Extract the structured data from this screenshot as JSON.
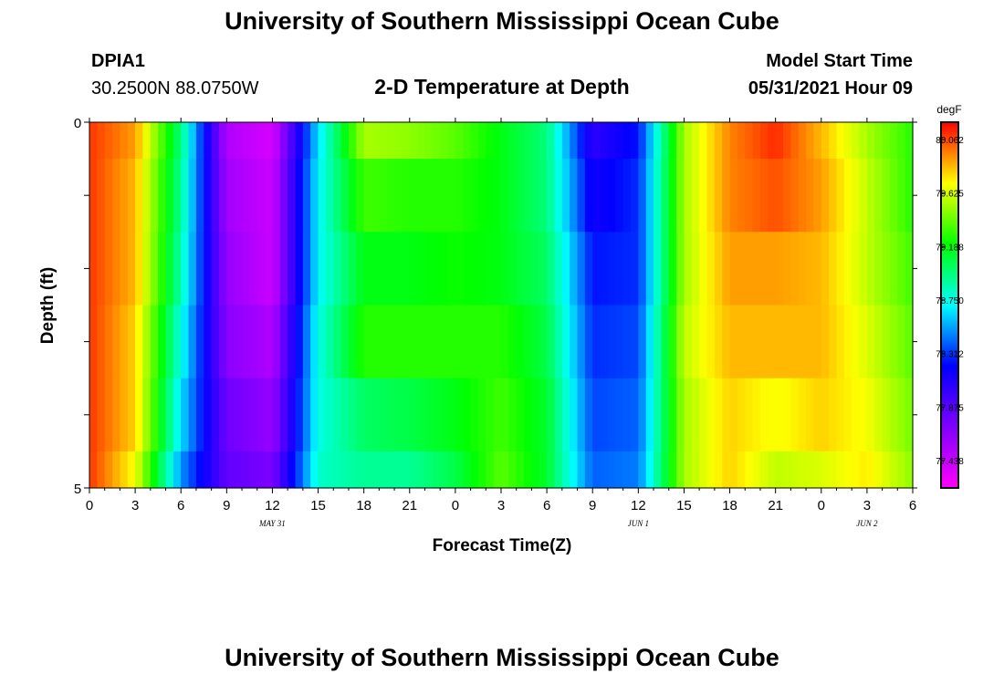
{
  "header": {
    "title": "University of Southern Mississippi Ocean Cube",
    "station_id": "DPIA1",
    "station_coords": "30.2500N  88.0750W",
    "chart_title": "2-D Temperature at Depth",
    "start_label": "Model Start Time",
    "start_value": "05/31/2021 Hour 09"
  },
  "footer": {
    "title": "University of Southern Mississippi Ocean Cube"
  },
  "chart_data": {
    "type": "heatmap",
    "title": "2-D Temperature at Depth",
    "xlabel": "Forecast Time(Z)",
    "ylabel": "Depth (ft)",
    "x_tick_labels": [
      "0",
      "3",
      "6",
      "9",
      "12",
      "15",
      "18",
      "21",
      "0",
      "3",
      "6",
      "9",
      "12",
      "15",
      "18",
      "21",
      "0",
      "3",
      "6"
    ],
    "date_labels": [
      {
        "text": "MAY 31",
        "at_tick": 4
      },
      {
        "text": "JUN 1",
        "at_tick": 12
      },
      {
        "text": "JUN 2",
        "at_tick": 17
      }
    ],
    "y_tick_labels": [
      "0",
      "5"
    ],
    "ylim": [
      0,
      5
    ],
    "colorbar": {
      "unit": "degF",
      "labels": [
        "80.062",
        "79.625",
        "79.188",
        "78.750",
        "78.312",
        "77.875",
        "77.438"
      ],
      "colors": [
        "#ff00ff",
        "#8000ff",
        "#0000ff",
        "#00ffff",
        "#00ff00",
        "#ffff00",
        "#ff0000"
      ]
    },
    "times_hours": [
      0,
      3,
      6,
      9,
      12,
      15,
      18,
      21,
      24,
      27,
      30,
      33,
      36,
      39,
      42,
      45,
      48,
      51,
      54
    ],
    "depth_rows": [
      "0-0.5",
      "0.5-1.5",
      "1.5-2.5",
      "2.5-3.5",
      "3.5-4.5",
      "4.5-5"
    ],
    "values_degF": [
      [
        80.1,
        79.9,
        79.0,
        77.6,
        77.45,
        78.7,
        79.55,
        79.5,
        79.4,
        79.2,
        79.0,
        78.1,
        78.3,
        79.55,
        79.95,
        80.12,
        79.85,
        79.55,
        79.3
      ],
      [
        80.1,
        79.85,
        78.95,
        77.65,
        77.5,
        78.75,
        79.35,
        79.3,
        79.3,
        79.2,
        79.0,
        78.2,
        78.35,
        79.55,
        79.95,
        80.05,
        79.9,
        79.6,
        79.3
      ],
      [
        80.1,
        79.85,
        78.9,
        77.7,
        77.5,
        78.75,
        79.2,
        79.2,
        79.25,
        79.2,
        79.05,
        78.3,
        78.35,
        79.55,
        79.9,
        79.9,
        79.85,
        79.6,
        79.35
      ],
      [
        80.1,
        79.8,
        78.8,
        77.75,
        77.6,
        78.8,
        79.3,
        79.3,
        79.3,
        79.3,
        79.1,
        78.35,
        78.4,
        79.6,
        79.85,
        79.85,
        79.85,
        79.65,
        79.4
      ],
      [
        80.1,
        79.8,
        78.7,
        77.85,
        77.7,
        78.8,
        79.05,
        79.1,
        79.2,
        79.35,
        79.15,
        78.4,
        78.45,
        79.55,
        79.8,
        79.7,
        79.8,
        79.7,
        79.45
      ],
      [
        80.1,
        79.7,
        78.55,
        77.9,
        77.8,
        78.85,
        78.95,
        78.95,
        79.1,
        79.4,
        79.15,
        78.45,
        78.5,
        79.55,
        79.8,
        79.6,
        79.65,
        79.75,
        79.5
      ]
    ]
  }
}
